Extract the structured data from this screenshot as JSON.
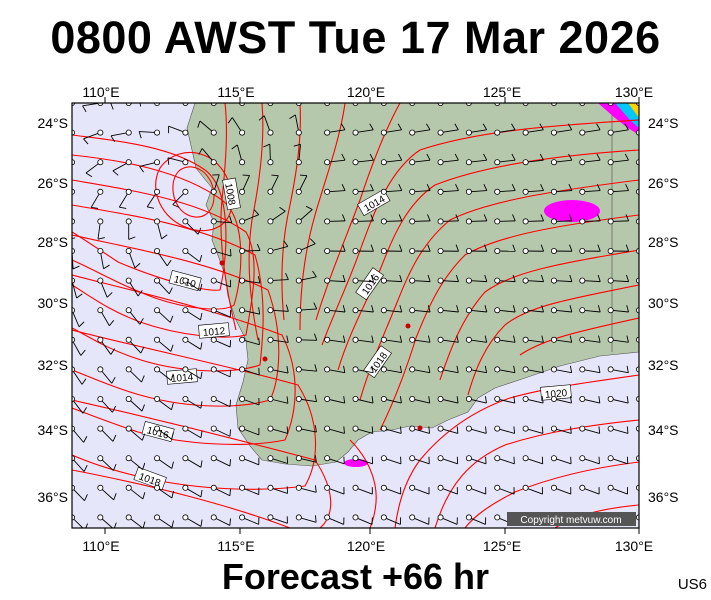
{
  "title": "0800 AWST Tue 17 Mar 2026",
  "footer": "Forecast +66 hr",
  "product_code": "US6",
  "copyright": "Copyright metvuw.com",
  "lon_ticks": [
    110,
    115,
    120,
    125,
    130
  ],
  "lon_labels": [
    "110°E",
    "115°E",
    "120°E",
    "125°E",
    "130°E"
  ],
  "lat_ticks": [
    -24,
    -26,
    -28,
    -30,
    -32,
    -34,
    -36
  ],
  "lat_labels": [
    "24°S",
    "26°S",
    "28°S",
    "30°S",
    "32°S",
    "34°S",
    "36°S"
  ],
  "isobar_labels": [
    "1008",
    "1010",
    "1012",
    "1014",
    "1016",
    "1018",
    "1014",
    "1016",
    "1018",
    "1020"
  ],
  "colors": {
    "ocean": "#e6e6fa",
    "land": "#b6c8ac",
    "isobar": "#ff0000",
    "rain": "#ff00ff",
    "frame": "#000000"
  }
}
